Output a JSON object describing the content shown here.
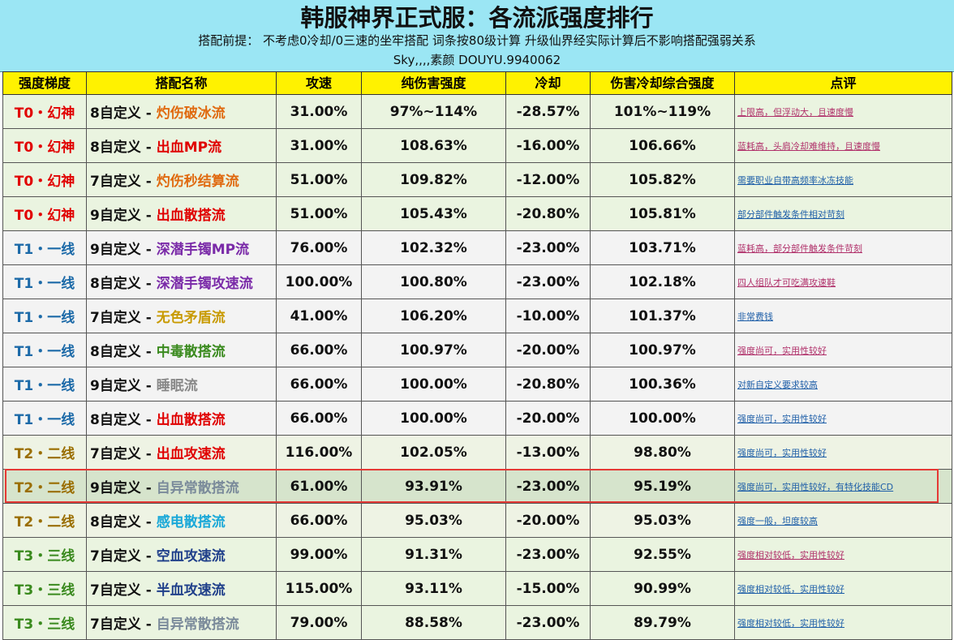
{
  "header": {
    "title": "韩服神界正式服：各流派强度排行",
    "subtitle": "搭配前提： 不考虑0冷却/0三速的坐牢搭配  词条按80级计算  升级仙界经实际计算后不影响搭配强弱关系",
    "author": "Sky,,,,素颜 DOUYU.9940062"
  },
  "table": {
    "columns": [
      "强度梯度",
      "搭配名称",
      "攻速",
      "纯伤害强度",
      "冷却",
      "伤害冷却综合强度",
      "点评"
    ],
    "rows": [
      {
        "tier": "T0・幻神",
        "prefix": "8自定义 - ",
        "name": "灼伤破冰流",
        "name_color": "#e06a10",
        "speed": "31.00%",
        "damage": "97%~114%",
        "cooldown": "-28.57%",
        "overall": "101%~119%",
        "comment": "上限高，但浮动大，且速度慢",
        "comment_color": "#b0306a"
      },
      {
        "tier": "T0・幻神",
        "prefix": "8自定义 - ",
        "name": "出血MP流",
        "name_color": "#e00000",
        "speed": "31.00%",
        "damage": "108.63%",
        "cooldown": "-16.00%",
        "overall": "106.66%",
        "comment": "蓝耗高，头肩冷却难维持，且速度慢",
        "comment_color": "#b0306a"
      },
      {
        "tier": "T0・幻神",
        "prefix": "7自定义 - ",
        "name": "灼伤秒结算流",
        "name_color": "#e06a10",
        "speed": "51.00%",
        "damage": "109.82%",
        "cooldown": "-12.00%",
        "overall": "105.82%",
        "comment": "需要职业自带高频率冰冻技能",
        "comment_color": "#1f5fa8"
      },
      {
        "tier": "T0・幻神",
        "prefix": "9自定义 - ",
        "name": "出血散搭流",
        "name_color": "#e00000",
        "speed": "51.00%",
        "damage": "105.43%",
        "cooldown": "-20.80%",
        "overall": "105.81%",
        "comment": "部分部件触发条件相对苛刻",
        "comment_color": "#1f5fa8"
      },
      {
        "tier": "T1・一线",
        "prefix": "9自定义 - ",
        "name": "深潜手镯MP流",
        "name_color": "#7a2aa8",
        "speed": "76.00%",
        "damage": "102.32%",
        "cooldown": "-23.00%",
        "overall": "103.71%",
        "comment": "蓝耗高，部分部件触发条件苛刻",
        "comment_color": "#b0306a"
      },
      {
        "tier": "T1・一线",
        "prefix": "8自定义 - ",
        "name": "深潜手镯攻速流",
        "name_color": "#7a2aa8",
        "speed": "100.00%",
        "damage": "100.80%",
        "cooldown": "-23.00%",
        "overall": "102.18%",
        "comment": "四人组队才可吃满攻速鞋",
        "comment_color": "#b0306a"
      },
      {
        "tier": "T1・一线",
        "prefix": "7自定义 - ",
        "name": "无色矛盾流",
        "name_color": "#c89a00",
        "speed": "41.00%",
        "damage": "106.20%",
        "cooldown": "-10.00%",
        "overall": "101.37%",
        "comment": "非常费钱",
        "comment_color": "#1f5fa8"
      },
      {
        "tier": "T1・一线",
        "prefix": "8自定义 - ",
        "name": "中毒散搭流",
        "name_color": "#3a8a1e",
        "speed": "66.00%",
        "damage": "100.97%",
        "cooldown": "-20.00%",
        "overall": "100.97%",
        "comment": "强度尚可，实用性较好",
        "comment_color": "#b0306a"
      },
      {
        "tier": "T1・一线",
        "prefix": "9自定义 - ",
        "name": "睡眠流",
        "name_color": "#888888",
        "speed": "66.00%",
        "damage": "100.00%",
        "cooldown": "-20.80%",
        "overall": "100.36%",
        "comment": "对新自定义要求较高",
        "comment_color": "#1f5fa8"
      },
      {
        "tier": "T1・一线",
        "prefix": "8自定义 - ",
        "name": "出血散搭流",
        "name_color": "#e00000",
        "speed": "66.00%",
        "damage": "100.00%",
        "cooldown": "-20.00%",
        "overall": "100.00%",
        "comment": "强度尚可，实用性较好",
        "comment_color": "#1f5fa8"
      },
      {
        "tier": "T2・二线",
        "prefix": "7自定义 - ",
        "name": "出血攻速流",
        "name_color": "#e00000",
        "speed": "116.00%",
        "damage": "102.05%",
        "cooldown": "-13.00%",
        "overall": "98.80%",
        "comment": "强度尚可，实用性较好",
        "comment_color": "#1f5fa8"
      },
      {
        "tier": "T2・二线",
        "prefix": "9自定义 - ",
        "name": "自异常散搭流",
        "name_color": "#7a8a9a",
        "speed": "61.00%",
        "damage": "93.91%",
        "cooldown": "-23.00%",
        "overall": "95.19%",
        "comment": "强度尚可，实用性较好，有特化技能CD",
        "comment_color": "#1f5fa8",
        "highlight": true
      },
      {
        "tier": "T2・二线",
        "prefix": "8自定义 - ",
        "name": "感电散搭流",
        "name_color": "#1aa8d8",
        "speed": "66.00%",
        "damage": "95.03%",
        "cooldown": "-20.00%",
        "overall": "95.03%",
        "comment": "强度一般，坦度较高",
        "comment_color": "#1f5fa8"
      },
      {
        "tier": "T3・三线",
        "prefix": "7自定义 - ",
        "name": "空血攻速流",
        "name_color": "#1f3f8a",
        "speed": "99.00%",
        "damage": "91.31%",
        "cooldown": "-23.00%",
        "overall": "92.55%",
        "comment": "强度相对较低，实用性较好",
        "comment_color": "#b0306a"
      },
      {
        "tier": "T3・三线",
        "prefix": "7自定义 - ",
        "name": "半血攻速流",
        "name_color": "#1f3f8a",
        "speed": "115.00%",
        "damage": "93.11%",
        "cooldown": "-15.00%",
        "overall": "90.99%",
        "comment": "强度相对较低，实用性较好",
        "comment_color": "#1f5fa8"
      },
      {
        "tier": "T3・三线",
        "prefix": "7自定义 - ",
        "name": "自异常散搭流",
        "name_color": "#7a8a9a",
        "speed": "79.00%",
        "damage": "88.58%",
        "cooldown": "-23.00%",
        "overall": "89.79%",
        "comment": "强度相对较低，实用性较好",
        "comment_color": "#1f5fa8"
      }
    ]
  }
}
